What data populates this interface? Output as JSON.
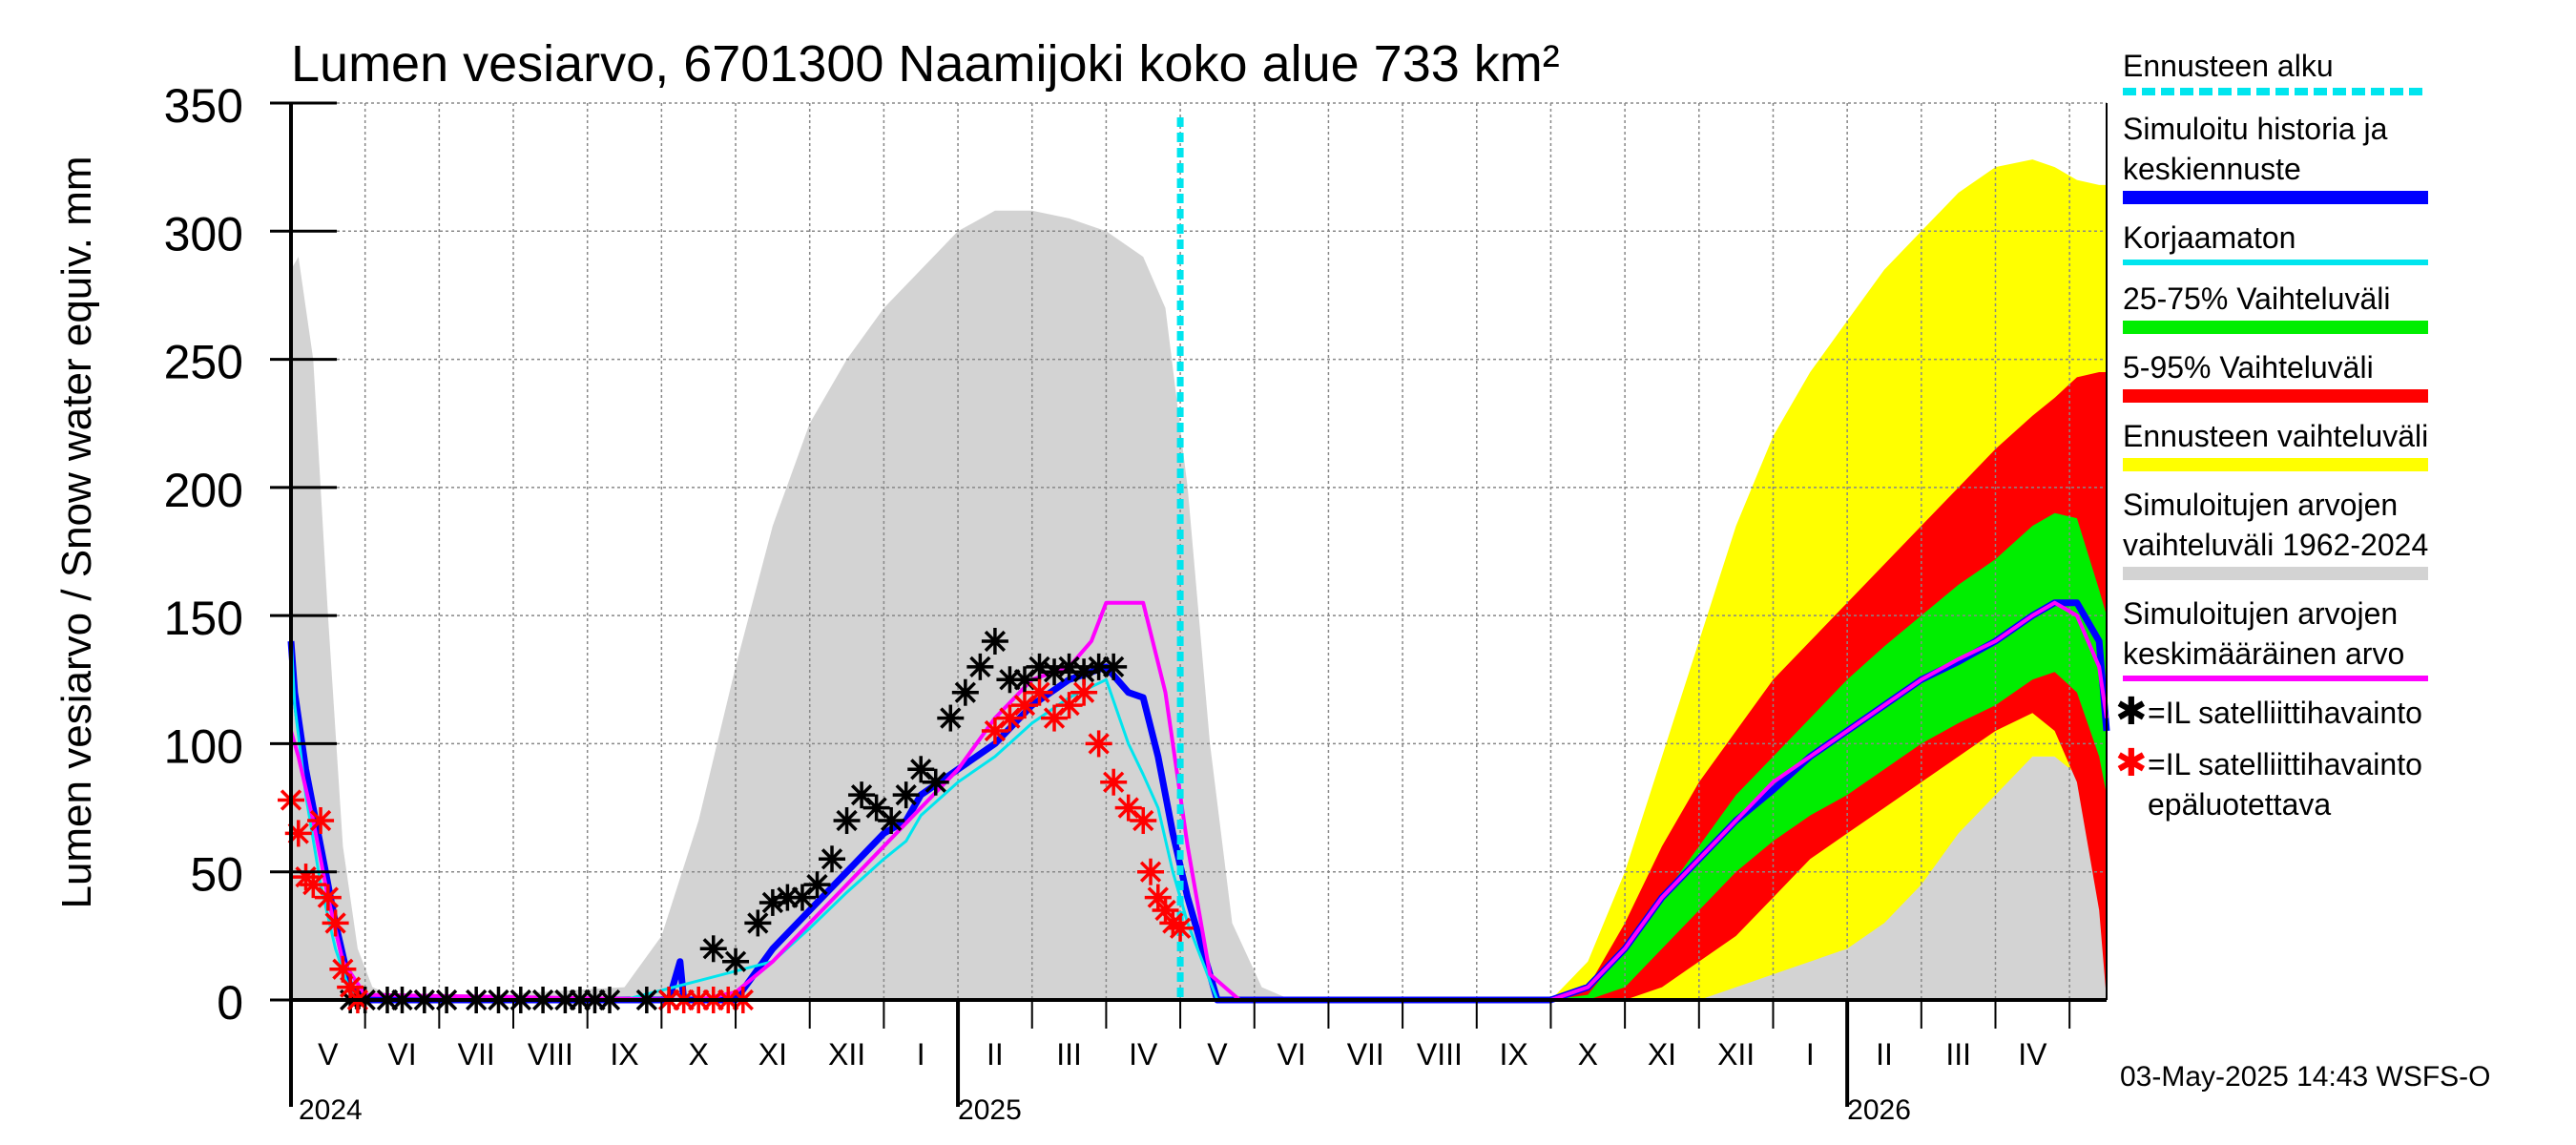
{
  "chart_data": {
    "type": "area",
    "title": "Lumen vesiarvo, 6701300 Naamijoki koko alue 733 km²",
    "ylabel": "Lumen vesiarvo / Snow water equiv.    mm",
    "xlabel": "",
    "ylim": [
      0,
      350
    ],
    "yticks": [
      0,
      50,
      100,
      150,
      200,
      250,
      300,
      350
    ],
    "x_unit": "months since 2024-04-01",
    "xlim": [
      0.5,
      25.0
    ],
    "month_labels": [
      "V",
      "VI",
      "VII",
      "VIII",
      "IX",
      "X",
      "XI",
      "XII",
      "I",
      "II",
      "III",
      "IV",
      "V",
      "VI",
      "VII",
      "VIII",
      "IX",
      "X",
      "XI",
      "XII",
      "I",
      "II",
      "III",
      "IV"
    ],
    "year_labels": [
      "2024",
      "2025",
      "2026"
    ],
    "forecast_start": 12.5,
    "grid": true,
    "series": [
      {
        "name": "Simuloitujen arvojen vaihteluväli 1962-2024",
        "kind": "band",
        "color": "#d3d3d3",
        "x": [
          0.5,
          0.6,
          0.8,
          1.0,
          1.2,
          1.4,
          1.6,
          2.0,
          5.0,
          5.5,
          6.0,
          6.5,
          7.0,
          7.5,
          8.0,
          8.5,
          9.0,
          9.5,
          10.0,
          10.5,
          11.0,
          11.5,
          12.0,
          12.3,
          12.6,
          12.9,
          13.2,
          13.6,
          14.0,
          17.0,
          18.0,
          18.5,
          19.0,
          19.5,
          20.0,
          20.5,
          21.0,
          21.5,
          22.0,
          22.5,
          23.0,
          23.5,
          24.0,
          24.3,
          24.6,
          24.9,
          25.0
        ],
        "upper": [
          285,
          290,
          250,
          150,
          60,
          20,
          5,
          0,
          5,
          25,
          70,
          130,
          185,
          225,
          250,
          270,
          285,
          300,
          308,
          308,
          305,
          300,
          290,
          270,
          200,
          100,
          30,
          5,
          0,
          0,
          2,
          5,
          10,
          12,
          15,
          18,
          20,
          25,
          35,
          50,
          70,
          85,
          95,
          95,
          90,
          60,
          10
        ],
        "lower": [
          0,
          0,
          0,
          0,
          0,
          0,
          0,
          0,
          0,
          0,
          0,
          0,
          0,
          0,
          0,
          0,
          0,
          0,
          0,
          0,
          0,
          0,
          0,
          0,
          0,
          0,
          0,
          0,
          0,
          0,
          0,
          0,
          0,
          0,
          0,
          0,
          0,
          0,
          0,
          0,
          0,
          0,
          0,
          0,
          0,
          0,
          0
        ]
      },
      {
        "name": "Ennusteen vaihteluväli",
        "kind": "band",
        "color": "#ffff00",
        "x": [
          17.5,
          18.0,
          18.5,
          19.0,
          19.5,
          20.0,
          20.5,
          21.0,
          21.5,
          22.0,
          22.5,
          23.0,
          23.5,
          24.0,
          24.3,
          24.6,
          24.9,
          25.0
        ],
        "upper": [
          0,
          15,
          50,
          95,
          140,
          185,
          220,
          245,
          265,
          285,
          300,
          315,
          325,
          328,
          325,
          320,
          318,
          318
        ],
        "lower": [
          0,
          0,
          0,
          0,
          0,
          5,
          10,
          15,
          20,
          30,
          45,
          65,
          80,
          95,
          95,
          88,
          50,
          0
        ]
      },
      {
        "name": "5-95% Vaihteluväli",
        "kind": "band",
        "color": "#ff0000",
        "x": [
          17.5,
          18.0,
          18.5,
          19.0,
          19.5,
          20.0,
          20.5,
          21.0,
          21.5,
          22.0,
          22.5,
          23.0,
          23.5,
          24.0,
          24.3,
          24.6,
          24.9,
          25.0
        ],
        "upper": [
          0,
          5,
          30,
          60,
          85,
          105,
          125,
          140,
          155,
          170,
          185,
          200,
          215,
          228,
          235,
          243,
          245,
          245
        ],
        "lower": [
          0,
          0,
          0,
          5,
          15,
          25,
          40,
          55,
          65,
          75,
          85,
          95,
          105,
          112,
          105,
          85,
          35,
          0
        ]
      },
      {
        "name": "25-75% Vaihteluväli",
        "kind": "band",
        "color": "#00ee00",
        "x": [
          17.5,
          18.0,
          18.5,
          19.0,
          19.5,
          20.0,
          20.5,
          21.0,
          21.5,
          22.0,
          22.5,
          23.0,
          23.5,
          24.0,
          24.3,
          24.6,
          24.9,
          25.0
        ],
        "upper": [
          0,
          2,
          20,
          40,
          60,
          80,
          95,
          110,
          125,
          138,
          150,
          162,
          172,
          185,
          190,
          188,
          160,
          150
        ],
        "lower": [
          0,
          0,
          5,
          20,
          35,
          50,
          62,
          72,
          80,
          90,
          100,
          108,
          115,
          125,
          128,
          120,
          95,
          80
        ]
      },
      {
        "name": "Simuloitu historia ja keskiennuste",
        "kind": "line",
        "color": "#0000ff",
        "width": 7,
        "x": [
          0.5,
          0.55,
          0.7,
          0.9,
          1.1,
          1.3,
          1.5,
          5.0,
          5.6,
          5.75,
          5.8,
          6.5,
          7.0,
          7.5,
          8.0,
          8.5,
          8.8,
          9.0,
          9.5,
          10.0,
          10.5,
          11.0,
          11.5,
          11.8,
          12.0,
          12.2,
          12.4,
          12.6,
          13.0,
          17.5,
          18.0,
          18.5,
          19.0,
          19.5,
          20.0,
          20.5,
          21.0,
          21.5,
          22.0,
          22.5,
          23.0,
          23.5,
          24.0,
          24.3,
          24.6,
          24.9,
          25.0
        ],
        "y": [
          140,
          120,
          90,
          60,
          30,
          5,
          0,
          0,
          0,
          15,
          0,
          0,
          20,
          35,
          50,
          65,
          70,
          80,
          90,
          100,
          115,
          125,
          130,
          120,
          118,
          95,
          65,
          40,
          0,
          0,
          5,
          20,
          40,
          55,
          70,
          82,
          95,
          105,
          115,
          125,
          132,
          140,
          150,
          155,
          155,
          140,
          105
        ]
      },
      {
        "name": "Korjaamaton",
        "kind": "line",
        "color": "#00e5ee",
        "width": 3,
        "x": [
          0.5,
          0.55,
          0.7,
          0.9,
          1.1,
          1.3,
          1.5,
          5.0,
          7.0,
          7.5,
          8.0,
          8.5,
          8.8,
          9.0,
          9.5,
          10.0,
          10.5,
          11.0,
          11.5,
          11.8,
          12.0,
          12.2,
          12.4,
          12.6,
          13.0
        ],
        "y": [
          142,
          115,
          80,
          45,
          20,
          3,
          0,
          0,
          15,
          28,
          42,
          55,
          62,
          72,
          85,
          95,
          108,
          118,
          125,
          100,
          88,
          75,
          50,
          30,
          0
        ]
      },
      {
        "name": "Simuloitujen arvojen keskimääräinen arvo",
        "kind": "line",
        "color": "#ff00ff",
        "width": 4,
        "x": [
          0.5,
          0.6,
          0.8,
          1.0,
          1.2,
          1.5,
          6.0,
          6.5,
          7.0,
          7.5,
          8.0,
          8.5,
          9.0,
          9.5,
          10.0,
          10.5,
          11.0,
          11.3,
          11.5,
          12.0,
          12.3,
          12.6,
          12.9,
          13.3,
          17.5,
          18.0,
          18.5,
          19.0,
          19.5,
          20.0,
          20.5,
          21.0,
          21.5,
          22.0,
          22.5,
          23.0,
          23.5,
          24.0,
          24.3,
          24.6,
          24.9,
          25.0
        ],
        "y": [
          105,
          95,
          70,
          40,
          15,
          2,
          0,
          3,
          15,
          30,
          45,
          60,
          75,
          90,
          110,
          125,
          130,
          140,
          155,
          155,
          120,
          60,
          10,
          0,
          0,
          5,
          20,
          40,
          55,
          70,
          85,
          95,
          105,
          115,
          125,
          133,
          140,
          150,
          155,
          150,
          130,
          110
        ]
      },
      {
        "name": "=IL satelliittihavainto",
        "kind": "markers",
        "color": "#000000",
        "x": [
          1.3,
          1.5,
          1.8,
          2.0,
          2.3,
          2.6,
          3.0,
          3.3,
          3.6,
          3.9,
          4.2,
          4.4,
          4.6,
          4.8,
          5.3,
          5.6,
          6.2,
          6.5,
          6.8,
          7.0,
          7.2,
          7.4,
          7.6,
          7.8,
          8.0,
          8.2,
          8.4,
          8.6,
          8.8,
          9.0,
          9.2,
          9.4,
          9.6,
          9.8,
          10.0,
          10.2,
          10.4,
          10.6,
          10.8,
          11.0,
          11.2,
          11.4,
          11.6
        ],
        "y": [
          0,
          0,
          0,
          0,
          0,
          0,
          0,
          0,
          0,
          0,
          0,
          0,
          0,
          0,
          0,
          0,
          20,
          15,
          30,
          38,
          40,
          40,
          45,
          55,
          70,
          80,
          75,
          70,
          80,
          90,
          85,
          110,
          120,
          130,
          140,
          125,
          125,
          130,
          128,
          130,
          128,
          130,
          130
        ]
      },
      {
        "name": "=IL satelliittihavainto epäluotettava",
        "kind": "markers",
        "color": "#ff0000",
        "x": [
          0.5,
          0.6,
          0.7,
          0.8,
          0.9,
          1.0,
          1.1,
          1.2,
          1.3,
          1.4,
          5.6,
          5.8,
          6.0,
          6.2,
          6.4,
          6.6,
          10.0,
          10.2,
          10.4,
          10.6,
          10.8,
          11.0,
          11.2,
          11.4,
          11.6,
          11.8,
          12.0,
          12.1,
          12.2,
          12.3,
          12.4,
          12.5
        ],
        "y": [
          78,
          65,
          48,
          45,
          70,
          40,
          30,
          12,
          5,
          0,
          0,
          0,
          0,
          0,
          0,
          0,
          105,
          110,
          115,
          120,
          110,
          115,
          120,
          100,
          85,
          75,
          70,
          50,
          40,
          35,
          30,
          28
        ]
      }
    ]
  },
  "legend": {
    "items": [
      {
        "text": "Ennusteen alku",
        "color": "#00e5ee"
      },
      {
        "text": "Simuloitu historia ja\nkeskiennuste",
        "color": "#0000ff"
      },
      {
        "text": "Korjaamaton",
        "color": "#00e5ee"
      },
      {
        "text": "25-75% Vaihteluväli",
        "color": "#00ee00"
      },
      {
        "text": "5-95% Vaihteluväli",
        "color": "#ff0000"
      },
      {
        "text": "Ennusteen vaihteluväli",
        "color": "#ffff00"
      },
      {
        "text": "Simuloitujen arvojen\nvaihteluväli 1962-2024",
        "color": "#d3d3d3"
      },
      {
        "text": "Simuloitujen arvojen\nkeskimääräinen arvo",
        "color": "#ff00ff"
      }
    ],
    "star_black_text": "=IL satelliittihavainto",
    "star_red_text": "=IL satelliittihavainto\nepäluotettava",
    "star_glyph": "✱"
  },
  "footer": {
    "timestamp": "03-May-2025 14:43 WSFS-O"
  }
}
